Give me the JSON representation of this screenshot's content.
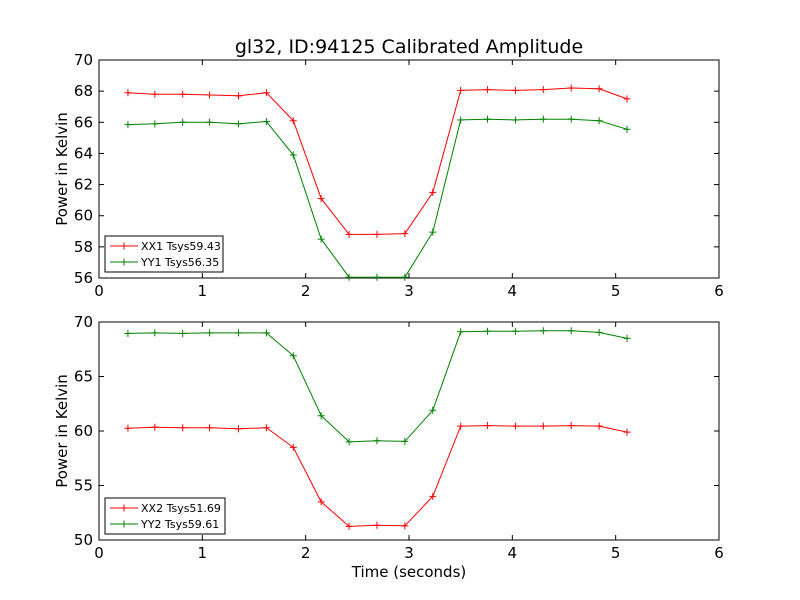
{
  "chart_data": {
    "title": "gl32, ID:94125 Calibrated Amplitude",
    "xlabel": "Time (seconds)",
    "subplots": [
      {
        "type": "line",
        "ylabel": "Power in Kelvin",
        "xlim": [
          0,
          6
        ],
        "ylim": [
          56,
          70
        ],
        "xticks": [
          0,
          1,
          2,
          3,
          4,
          5,
          6
        ],
        "yticks": [
          56,
          58,
          60,
          62,
          64,
          66,
          68,
          70
        ],
        "legend_position": "lower-left",
        "x": [
          0.28,
          0.54,
          0.81,
          1.07,
          1.35,
          1.62,
          1.88,
          2.15,
          2.42,
          2.69,
          2.96,
          3.23,
          3.5,
          3.76,
          4.03,
          4.3,
          4.57,
          4.84,
          5.11
        ],
        "series": [
          {
            "name": "XX1 Tsys59.43",
            "color": "#ff0000",
            "values": [
              67.9,
              67.8,
              67.8,
              67.75,
              67.7,
              67.9,
              66.1,
              61.1,
              58.8,
              58.8,
              58.85,
              61.5,
              68.05,
              68.1,
              68.05,
              68.1,
              68.2,
              68.15,
              67.5
            ]
          },
          {
            "name": "YY1 Tsys56.35",
            "color": "#008000",
            "values": [
              65.85,
              65.9,
              66.0,
              66.0,
              65.9,
              66.05,
              63.9,
              58.5,
              56.05,
              56.05,
              56.05,
              58.95,
              66.15,
              66.2,
              66.15,
              66.2,
              66.2,
              66.1,
              65.55
            ]
          }
        ]
      },
      {
        "type": "line",
        "ylabel": "Power in Kelvin",
        "xlim": [
          0,
          6
        ],
        "ylim": [
          50,
          70
        ],
        "xticks": [
          0,
          1,
          2,
          3,
          4,
          5,
          6
        ],
        "yticks": [
          50,
          55,
          60,
          65,
          70
        ],
        "legend_position": "lower-left",
        "x": [
          0.28,
          0.54,
          0.81,
          1.07,
          1.35,
          1.62,
          1.88,
          2.15,
          2.42,
          2.69,
          2.96,
          3.23,
          3.5,
          3.76,
          4.03,
          4.3,
          4.57,
          4.84,
          5.11
        ],
        "series": [
          {
            "name": "XX2 Tsys51.69",
            "color": "#ff0000",
            "values": [
              60.25,
              60.35,
              60.3,
              60.3,
              60.2,
              60.3,
              58.5,
              53.5,
              51.25,
              51.35,
              51.3,
              54.0,
              60.45,
              60.5,
              60.45,
              60.45,
              60.5,
              60.45,
              59.9
            ]
          },
          {
            "name": "YY2 Tsys59.61",
            "color": "#008000",
            "values": [
              68.95,
              69.0,
              68.95,
              69.0,
              69.0,
              69.0,
              66.9,
              61.4,
              59.0,
              59.1,
              59.05,
              61.9,
              69.1,
              69.15,
              69.15,
              69.2,
              69.2,
              69.05,
              68.5
            ]
          }
        ]
      }
    ]
  }
}
